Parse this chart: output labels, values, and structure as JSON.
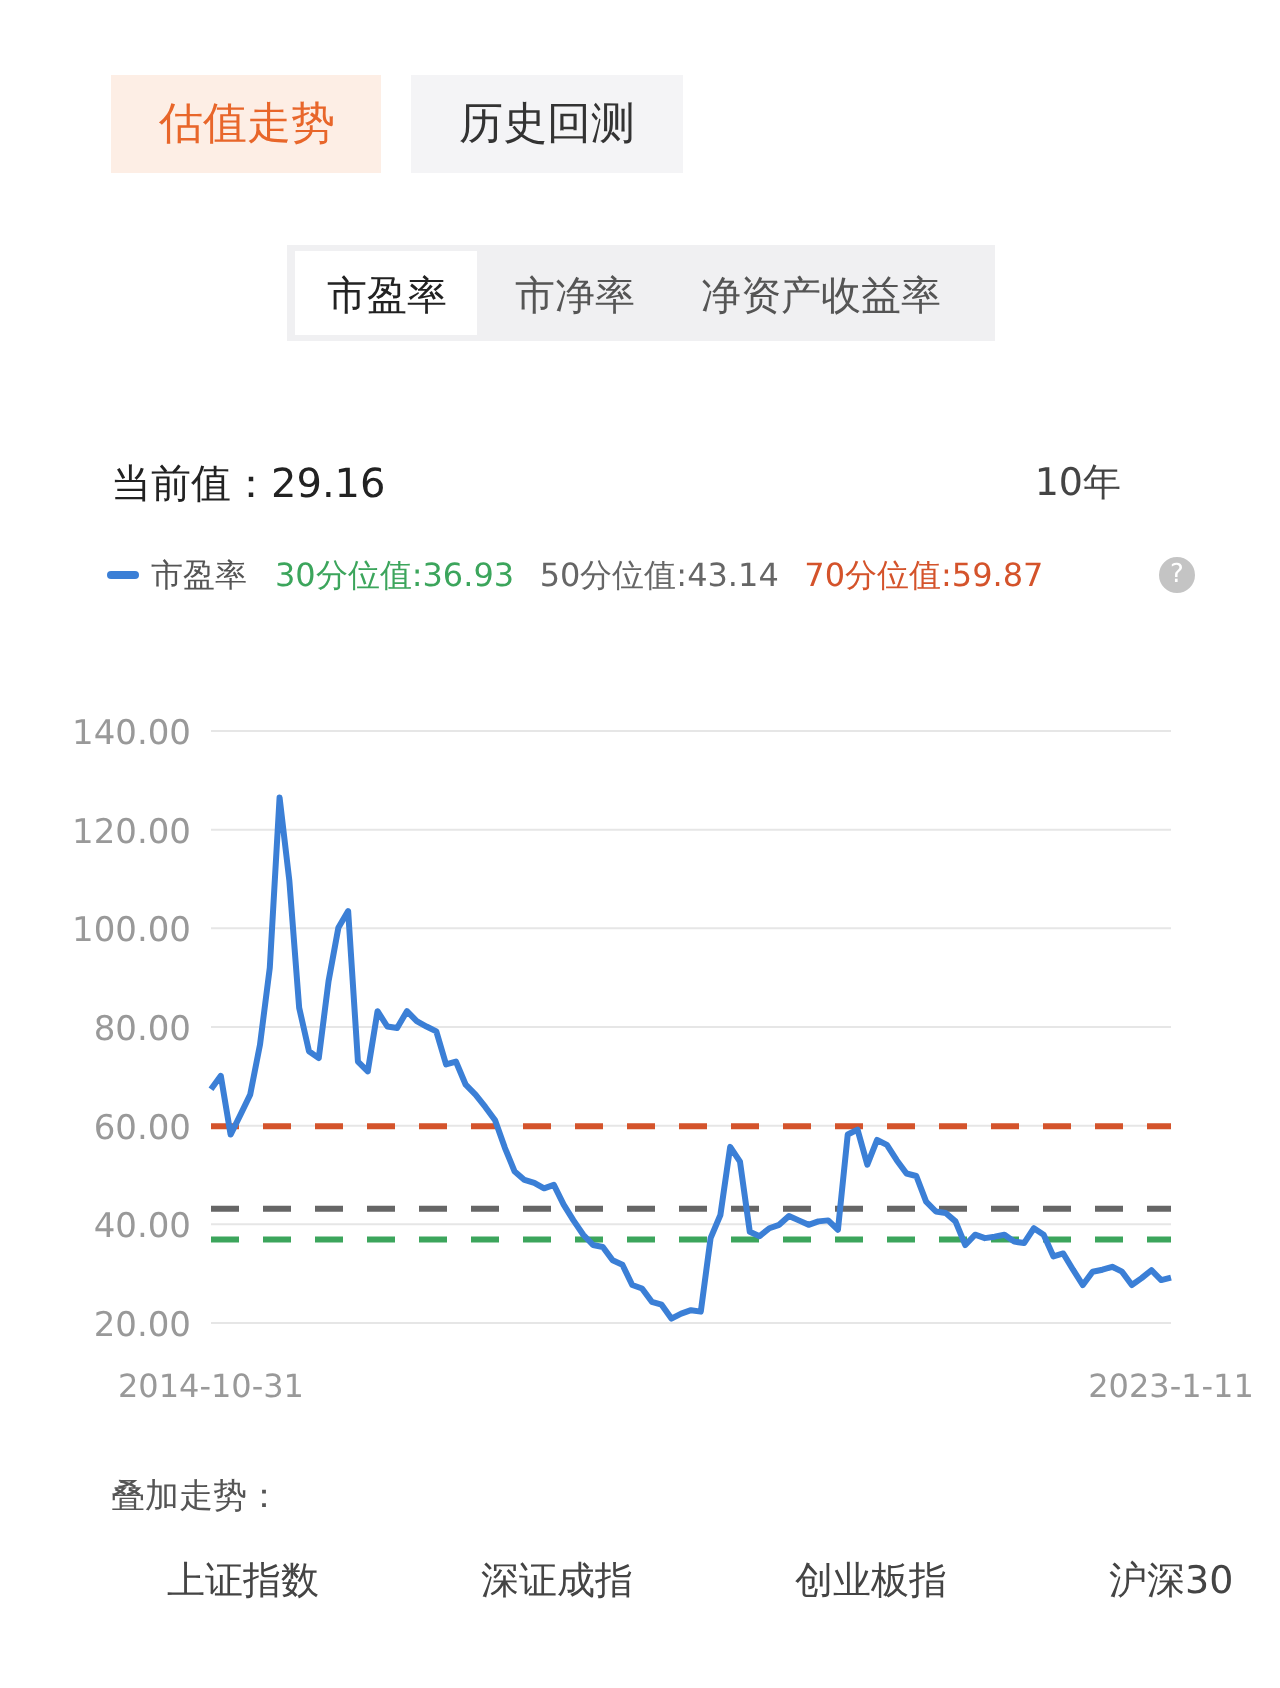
{
  "chart_data": {
    "type": "line",
    "categories": [
      "2014-10-31",
      null,
      null,
      null,
      null,
      null,
      null,
      null,
      null,
      null,
      null,
      null,
      null,
      null,
      null,
      null,
      null,
      null,
      null,
      null,
      null,
      null,
      null,
      null,
      null,
      null,
      null,
      null,
      null,
      null,
      null,
      null,
      null,
      null,
      null,
      null,
      null,
      null,
      null,
      null,
      null,
      null,
      null,
      null,
      null,
      null,
      null,
      null,
      null,
      null,
      null,
      null,
      null,
      null,
      null,
      null,
      null,
      null,
      null,
      null,
      null,
      null,
      null,
      null,
      null,
      null,
      null,
      null,
      null,
      null,
      null,
      null,
      null,
      null,
      null,
      null,
      null,
      null,
      null,
      null,
      null,
      null,
      null,
      null,
      null,
      null,
      null,
      null,
      null,
      null,
      null,
      null,
      null,
      null,
      null,
      null,
      null,
      null,
      "2023-1-11"
    ],
    "series": [
      {
        "name": "市盈率",
        "color": "#3b7fd6",
        "values": [
          67.4,
          70.1,
          58.2,
          62.2,
          66.3,
          76.4,
          92.0,
          126.5,
          109.6,
          83.9,
          75.1,
          73.7,
          89.3,
          100.1,
          103.5,
          73.0,
          71.0,
          83.2,
          80.1,
          79.8,
          83.2,
          81.2,
          80.1,
          79.1,
          72.4,
          73.0,
          68.3,
          66.3,
          63.8,
          61.1,
          55.5,
          50.7,
          49.0,
          48.4,
          47.3,
          48.0,
          44.0,
          40.8,
          37.9,
          35.8,
          35.4,
          32.7,
          31.8,
          27.7,
          27.0,
          24.3,
          23.7,
          20.9,
          21.9,
          22.6,
          22.3,
          37.2,
          41.9,
          55.7,
          52.7,
          38.5,
          37.6,
          39.2,
          39.9,
          41.7,
          40.8,
          39.9,
          40.6,
          40.8,
          38.9,
          58.2,
          59.2,
          52.1,
          57.1,
          56.1,
          53.0,
          50.3,
          49.8,
          44.6,
          42.6,
          42.3,
          40.6,
          35.8,
          37.9,
          37.2,
          37.5,
          37.9,
          36.5,
          36.2,
          39.2,
          37.9,
          33.5,
          34.1,
          30.8,
          27.7,
          30.4,
          30.8,
          31.4,
          30.4,
          27.7,
          29.1,
          30.7,
          28.7,
          29.2
        ]
      }
    ],
    "ylim": [
      20,
      140
    ],
    "yticks": [
      {
        "value": 20,
        "label": "20.00"
      },
      {
        "value": 40,
        "label": "40.00"
      },
      {
        "value": 60,
        "label": "60.00"
      },
      {
        "value": 80,
        "label": "80.00"
      },
      {
        "value": 100,
        "label": "100.00"
      },
      {
        "value": 120,
        "label": "120.00"
      },
      {
        "value": 140,
        "label": "140.00"
      }
    ],
    "grid": "y",
    "legend": "top left",
    "ref_lines": [
      {
        "axis": "y",
        "value": 36.93,
        "label": "30分位值:36.93",
        "color": "#3ca55c",
        "line_style": "dashed"
      },
      {
        "axis": "y",
        "value": 43.14,
        "label": "50分位值:43.14",
        "color": "#666666",
        "line_style": "dashed"
      },
      {
        "axis": "y",
        "value": 59.87,
        "label": "70分位值:59.87",
        "color": "#d4532b",
        "line_style": "dashed"
      }
    ],
    "annotations": [
      "估值走势",
      "历史回测",
      "市盈率",
      "市净率",
      "净资产收益率",
      "当前值：29.16",
      "10年",
      "?",
      "叠加走势：",
      "上证指数",
      "深证成指",
      "创业板指",
      "沪深30"
    ]
  }
}
